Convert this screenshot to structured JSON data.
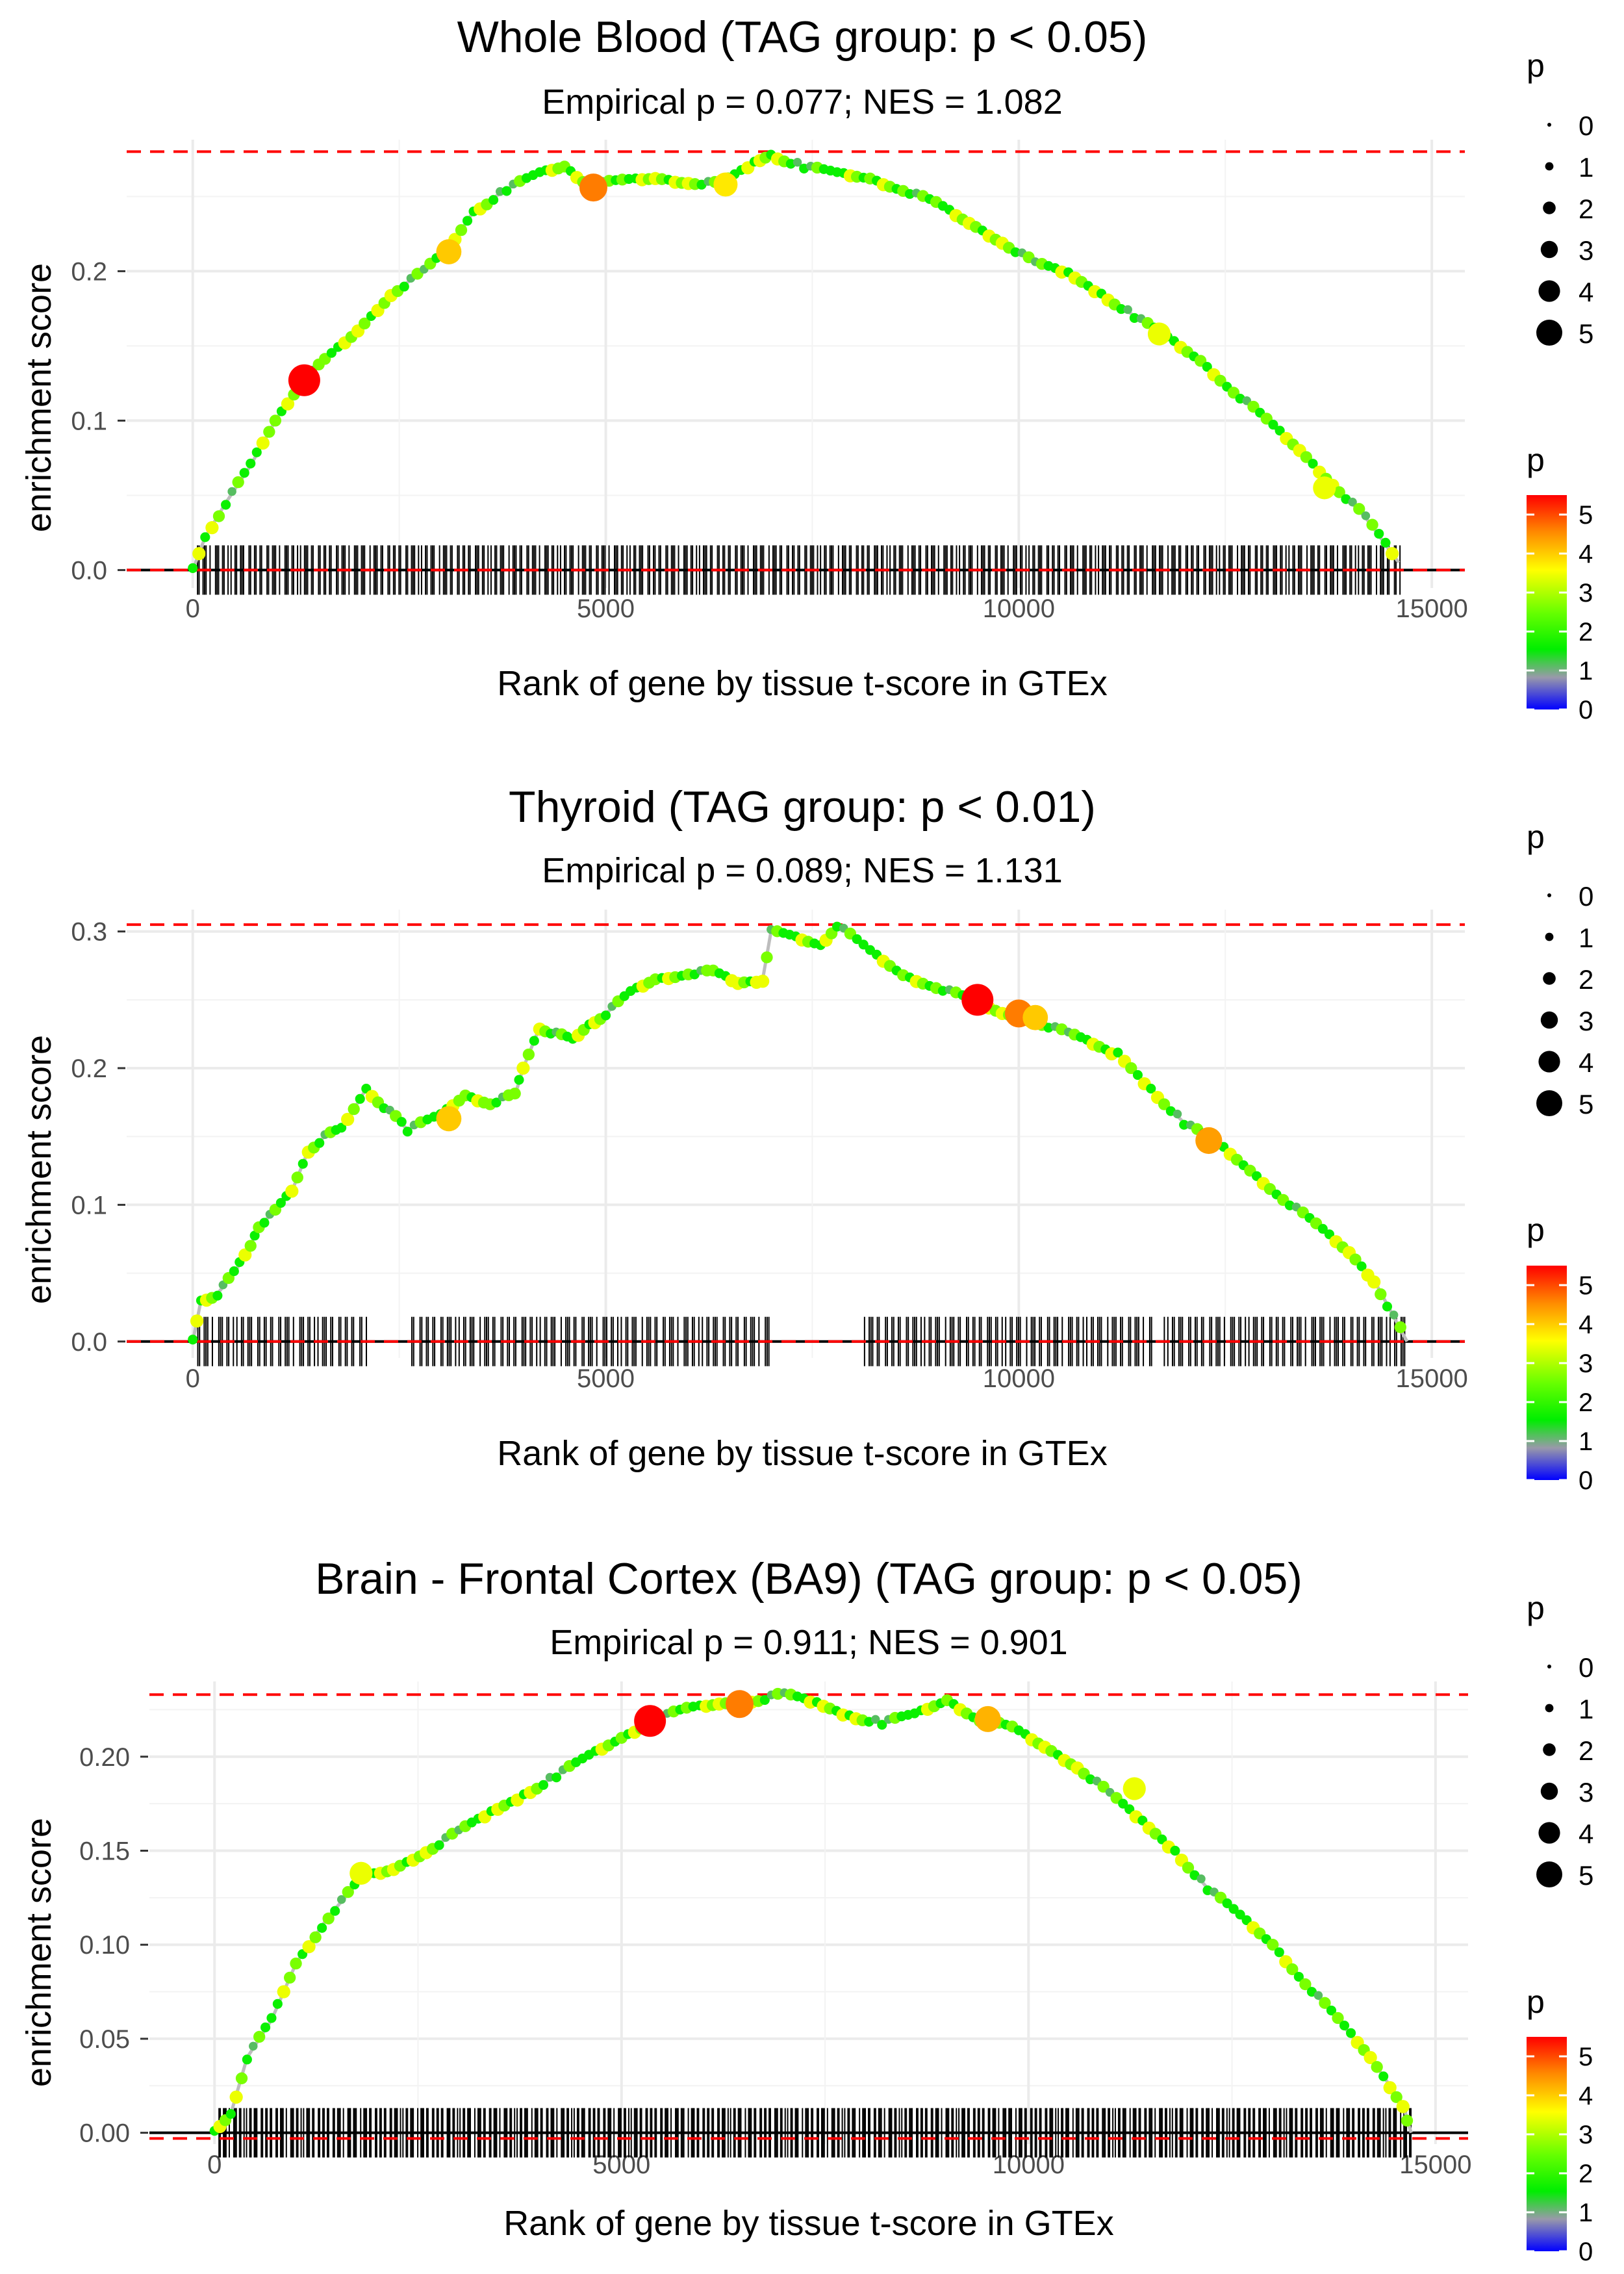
{
  "figure": {
    "legend_size_title": "p",
    "legend_color_title": "p"
  },
  "chart_data": [
    {
      "type": "line",
      "title": "Whole Blood (TAG group: p < 0.05)",
      "subtitle": "Empirical p = 0.077; NES = 1.082",
      "xlabel": "Rank of gene by tissue t-score in GTEx",
      "ylabel": "enrichment score",
      "xlim": [
        -800,
        15400
      ],
      "ylim": [
        -0.012,
        0.288
      ],
      "xticks": [
        0,
        5000,
        10000,
        15000
      ],
      "xtick_labels": [
        "0",
        "5000",
        "10000",
        "15000"
      ],
      "yticks": [
        0,
        0.1,
        0.2
      ],
      "ytick_labels": [
        "0.0",
        "0.1",
        "0.2"
      ],
      "max_es": 0.28,
      "min_es": 0,
      "rug_spacing": 30,
      "series": [
        {
          "name": "enrichment score",
          "x": [
            0,
            150,
            400,
            700,
            1000,
            1300,
            1600,
            2000,
            2400,
            2800,
            3100,
            3400,
            3800,
            4200,
            4500,
            4800,
            5200,
            5600,
            6000,
            6400,
            6800,
            7000,
            7400,
            7800,
            8200,
            8600,
            9000,
            9400,
            9800,
            10200,
            10600,
            11000,
            11400,
            11800,
            12200,
            12600,
            13000,
            13400,
            13800,
            14200,
            14600
          ],
          "y": [
            0.0,
            0.022,
            0.045,
            0.07,
            0.1,
            0.125,
            0.14,
            0.16,
            0.185,
            0.2,
            0.215,
            0.24,
            0.255,
            0.265,
            0.27,
            0.258,
            0.26,
            0.262,
            0.26,
            0.258,
            0.272,
            0.278,
            0.27,
            0.265,
            0.262,
            0.255,
            0.245,
            0.232,
            0.22,
            0.205,
            0.198,
            0.185,
            0.17,
            0.155,
            0.14,
            0.12,
            0.1,
            0.08,
            0.058,
            0.035,
            0.005
          ]
        }
      ],
      "highlights": [
        {
          "x": 1350,
          "y": 0.127,
          "p": 5.5
        },
        {
          "x": 3100,
          "y": 0.213,
          "p": 3.8
        },
        {
          "x": 4850,
          "y": 0.256,
          "p": 4.5
        },
        {
          "x": 6450,
          "y": 0.258,
          "p": 3.5
        },
        {
          "x": 11700,
          "y": 0.158,
          "p": 3.2
        },
        {
          "x": 13700,
          "y": 0.055,
          "p": 3.2
        }
      ]
    },
    {
      "type": "line",
      "title": "Thyroid (TAG group: p < 0.01)",
      "subtitle": "Empirical p = 0.089; NES = 1.131",
      "xlabel": "Rank of gene by tissue t-score in GTEx",
      "ylabel": "enrichment score",
      "xlim": [
        -800,
        15400
      ],
      "ylim": [
        -0.012,
        0.316
      ],
      "xticks": [
        0,
        5000,
        10000,
        15000
      ],
      "xtick_labels": [
        "0",
        "5000",
        "10000",
        "15000"
      ],
      "yticks": [
        0,
        0.1,
        0.2,
        0.3
      ],
      "ytick_labels": [
        "0.0",
        "0.1",
        "0.2",
        "0.3"
      ],
      "max_es": 0.305,
      "min_es": 0,
      "rug_spacing": 35,
      "series": [
        {
          "name": "enrichment score",
          "x": [
            0,
            100,
            300,
            500,
            700,
            800,
            1000,
            1200,
            1400,
            1600,
            1800,
            2100,
            2600,
            3000,
            3300,
            3600,
            3900,
            4000,
            4200,
            4400,
            4600,
            4800,
            5000,
            5300,
            5600,
            6000,
            6300,
            6600,
            6900,
            7000,
            7300,
            7600,
            7800,
            8200,
            8600,
            9000,
            9400,
            9800,
            10200,
            10600,
            11200,
            11600,
            12000,
            12400,
            12800,
            13200,
            13600,
            14000,
            14300,
            14700
          ],
          "y": [
            0.0,
            0.03,
            0.035,
            0.05,
            0.07,
            0.085,
            0.095,
            0.11,
            0.14,
            0.15,
            0.155,
            0.185,
            0.155,
            0.165,
            0.18,
            0.175,
            0.18,
            0.2,
            0.23,
            0.225,
            0.22,
            0.232,
            0.24,
            0.255,
            0.265,
            0.27,
            0.27,
            0.262,
            0.265,
            0.3,
            0.295,
            0.29,
            0.305,
            0.285,
            0.268,
            0.26,
            0.25,
            0.24,
            0.235,
            0.225,
            0.21,
            0.185,
            0.16,
            0.145,
            0.125,
            0.105,
            0.085,
            0.065,
            0.045,
            0.0
          ]
        }
      ],
      "highlights": [
        {
          "x": 3100,
          "y": 0.163,
          "p": 3.8
        },
        {
          "x": 9500,
          "y": 0.25,
          "p": 5.5
        },
        {
          "x": 10000,
          "y": 0.24,
          "p": 4.5
        },
        {
          "x": 10200,
          "y": 0.237,
          "p": 3.8
        },
        {
          "x": 12300,
          "y": 0.147,
          "p": 4.2
        }
      ]
    },
    {
      "type": "line",
      "title": "Brain - Frontal Cortex (BA9) (TAG group: p < 0.05)",
      "subtitle": "Empirical p = 0.911; NES = 0.901",
      "xlabel": "Rank of gene by tissue t-score in GTEx",
      "ylabel": "enrichment score",
      "xlim": [
        -800,
        15400
      ],
      "ylim": [
        -0.006,
        0.24
      ],
      "xticks": [
        0,
        5000,
        10000,
        15000
      ],
      "xtick_labels": [
        "0",
        "5000",
        "10000",
        "15000"
      ],
      "yticks": [
        0,
        0.05,
        0.1,
        0.15,
        0.2
      ],
      "ytick_labels": [
        "0.00",
        "0.05",
        "0.10",
        "0.15",
        "0.20"
      ],
      "max_es": 0.233,
      "min_es": -0.003,
      "rug_spacing": 25,
      "series": [
        {
          "name": "enrichment score",
          "x": [
            0,
            200,
            400,
            700,
            1000,
            1400,
            1800,
            2200,
            2600,
            3000,
            3400,
            3800,
            4200,
            4600,
            5000,
            5400,
            5800,
            6200,
            6600,
            7000,
            7400,
            7800,
            8200,
            8600,
            9000,
            9400,
            9800,
            10200,
            10600,
            11000,
            11400,
            11800,
            12200,
            12600,
            13000,
            13400,
            13800,
            14200,
            14600,
            14700
          ],
          "y": [
            0.0,
            0.01,
            0.04,
            0.06,
            0.09,
            0.115,
            0.135,
            0.14,
            0.15,
            0.16,
            0.17,
            0.18,
            0.19,
            0.2,
            0.21,
            0.22,
            0.225,
            0.228,
            0.23,
            0.233,
            0.228,
            0.222,
            0.218,
            0.222,
            0.23,
            0.22,
            0.215,
            0.205,
            0.195,
            0.18,
            0.165,
            0.15,
            0.13,
            0.115,
            0.1,
            0.08,
            0.06,
            0.04,
            0.015,
            0.0
          ]
        }
      ],
      "highlights": [
        {
          "x": 1800,
          "y": 0.138,
          "p": 3.2
        },
        {
          "x": 5350,
          "y": 0.219,
          "p": 5.5
        },
        {
          "x": 6450,
          "y": 0.228,
          "p": 4.5
        },
        {
          "x": 9500,
          "y": 0.22,
          "p": 4.0
        },
        {
          "x": 11300,
          "y": 0.183,
          "p": 3.2
        }
      ]
    }
  ],
  "legends": [
    {
      "size": {
        "title": "p",
        "labels": [
          "0",
          "1",
          "2",
          "3",
          "4",
          "5"
        ]
      },
      "color": {
        "title": "p",
        "labels": [
          "5",
          "4",
          "3",
          "2",
          "1",
          "0"
        ],
        "colors": [
          "#ff0000",
          "#ff8800",
          "#ffff00",
          "#66ff00",
          "#00ff00",
          "#999999",
          "#0000ff"
        ]
      }
    },
    {
      "size": {
        "title": "p",
        "labels": [
          "0",
          "1",
          "2",
          "3",
          "4",
          "5"
        ]
      },
      "color": {
        "title": "p",
        "labels": [
          "5",
          "4",
          "3",
          "2",
          "1",
          "0"
        ],
        "colors": [
          "#ff0000",
          "#ff8800",
          "#ffff00",
          "#66ff00",
          "#00ff00",
          "#999999",
          "#0000ff"
        ]
      }
    },
    {
      "size": {
        "title": "p",
        "labels": [
          "0",
          "1",
          "2",
          "3",
          "4",
          "5"
        ]
      },
      "color": {
        "title": "p",
        "labels": [
          "5",
          "4",
          "3",
          "2",
          "1",
          "0"
        ],
        "colors": [
          "#ff0000",
          "#ff8800",
          "#ffff00",
          "#66ff00",
          "#00ff00",
          "#999999",
          "#0000ff"
        ]
      }
    }
  ]
}
